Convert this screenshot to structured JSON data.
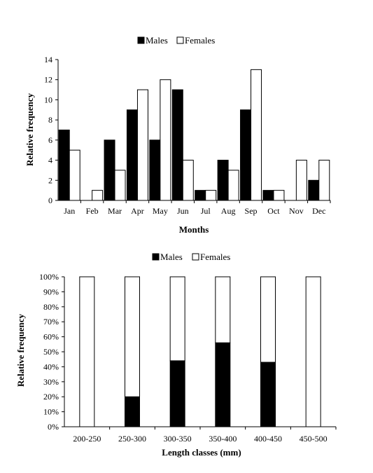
{
  "chart_data": [
    {
      "type": "bar",
      "xlabel": "Months",
      "ylabel": "Relative frequency",
      "ylim": [
        0,
        14
      ],
      "yticks": [
        0,
        2,
        4,
        6,
        8,
        10,
        12,
        14
      ],
      "grid": false,
      "legend": "top-center",
      "categories": [
        "Jan",
        "Feb",
        "Mar",
        "Apr",
        "May",
        "Jun",
        "Jul",
        "Aug",
        "Sep",
        "Oct",
        "Nov",
        "Dec"
      ],
      "series": [
        {
          "name": "Males",
          "color": "#000000",
          "values": [
            7,
            0,
            6,
            9,
            6,
            11,
            1,
            4,
            9,
            1,
            0,
            2
          ]
        },
        {
          "name": "Females",
          "color": "#ffffff",
          "values": [
            5,
            1,
            3,
            11,
            12,
            4,
            1,
            3,
            13,
            1,
            4,
            4
          ]
        }
      ]
    },
    {
      "type": "bar",
      "stacked": true,
      "percent": true,
      "xlabel": "Length classes (mm)",
      "ylabel": "Relative frequency",
      "ylim": [
        0,
        100
      ],
      "yticks": [
        "0%",
        "10%",
        "20%",
        "30%",
        "40%",
        "50%",
        "60%",
        "70%",
        "80%",
        "90%",
        "100%"
      ],
      "grid": false,
      "legend": "top-center",
      "categories": [
        "200-250",
        "250-300",
        "300-350",
        "350-400",
        "400-450",
        "450-500"
      ],
      "series": [
        {
          "name": "Males",
          "color": "#000000",
          "values": [
            0,
            20,
            44,
            56,
            43,
            0
          ]
        },
        {
          "name": "Females",
          "color": "#ffffff",
          "values": [
            100,
            80,
            56,
            44,
            57,
            100
          ]
        }
      ]
    }
  ]
}
